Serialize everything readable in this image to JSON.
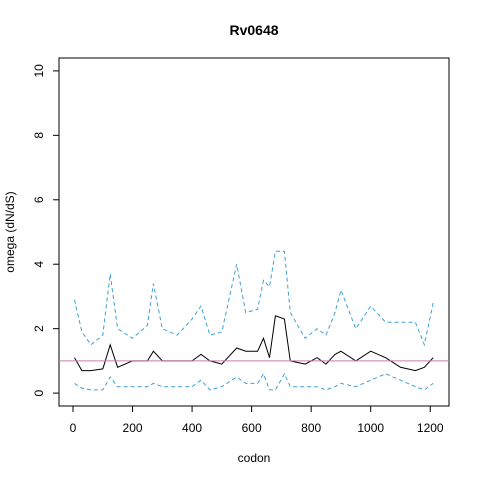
{
  "chart_data": {
    "type": "line",
    "title": "Rv0648",
    "xlabel": "codon",
    "ylabel": "omega (dN/dS)",
    "x": [
      5,
      30,
      60,
      100,
      125,
      150,
      200,
      250,
      270,
      300,
      350,
      400,
      430,
      460,
      500,
      550,
      580,
      620,
      640,
      660,
      680,
      710,
      730,
      780,
      820,
      850,
      880,
      900,
      950,
      1000,
      1050,
      1100,
      1150,
      1180,
      1210
    ],
    "series": [
      {
        "color": "#000000",
        "dashed": false,
        "values": [
          1.1,
          0.7,
          0.7,
          0.75,
          1.5,
          0.8,
          1.0,
          1.0,
          1.3,
          1.0,
          1.0,
          1.0,
          1.2,
          1.0,
          0.9,
          1.4,
          1.3,
          1.3,
          1.7,
          1.1,
          2.4,
          2.3,
          1.0,
          0.9,
          1.1,
          0.9,
          1.2,
          1.3,
          1.0,
          1.3,
          1.1,
          0.8,
          0.7,
          0.8,
          1.1
        ]
      },
      {
        "color": "#3ca0d8",
        "dashed": true,
        "values": [
          2.9,
          1.9,
          1.5,
          1.8,
          3.7,
          2.0,
          1.7,
          2.1,
          3.4,
          2.0,
          1.8,
          2.3,
          2.7,
          1.8,
          1.9,
          4.0,
          2.5,
          2.6,
          3.5,
          3.3,
          4.4,
          4.4,
          2.5,
          1.7,
          2.0,
          1.8,
          2.5,
          3.2,
          2.0,
          2.7,
          2.2,
          2.2,
          2.2,
          1.5,
          2.8
        ]
      },
      {
        "color": "#3ca0d8",
        "dashed": true,
        "values": [
          0.3,
          0.15,
          0.1,
          0.1,
          0.5,
          0.2,
          0.2,
          0.2,
          0.3,
          0.2,
          0.2,
          0.2,
          0.4,
          0.1,
          0.2,
          0.5,
          0.3,
          0.3,
          0.6,
          0.1,
          0.1,
          0.6,
          0.2,
          0.2,
          0.2,
          0.1,
          0.2,
          0.3,
          0.2,
          0.4,
          0.6,
          0.4,
          0.2,
          0.1,
          0.3
        ]
      }
    ],
    "hline": 1,
    "hline_color": "#c080a8",
    "xlim": [
      -47,
      1263
    ],
    "xticks": [
      0,
      200,
      400,
      600,
      800,
      1000,
      1200
    ],
    "ylim": [
      -0.4,
      10.4
    ],
    "yticks": [
      0,
      2,
      4,
      6,
      8,
      10
    ]
  }
}
